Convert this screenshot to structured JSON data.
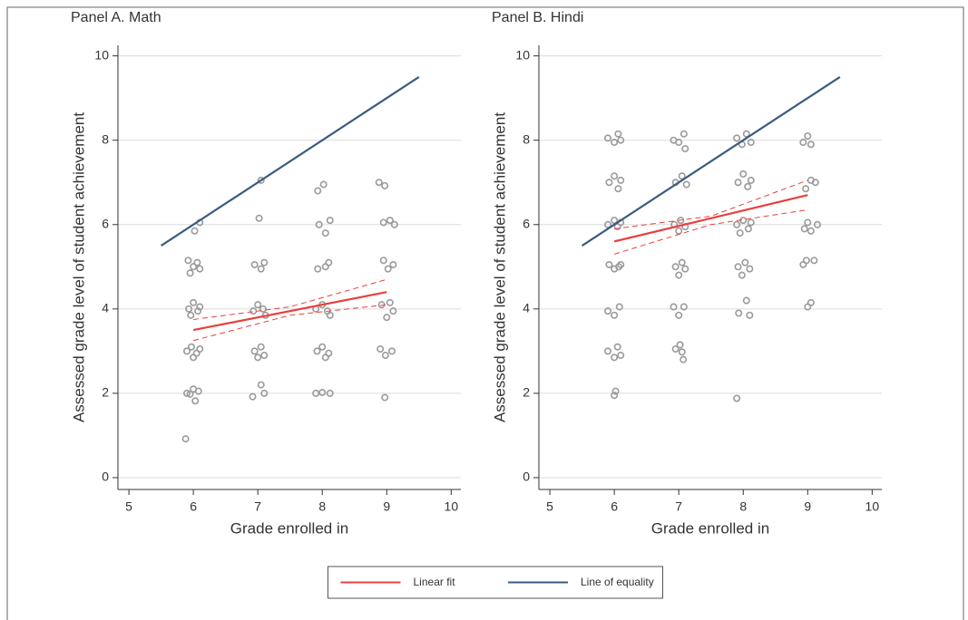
{
  "chart_data": [
    {
      "type": "scatter",
      "title": "Panel A. Math",
      "xlabel": "Grade enrolled in",
      "ylabel": "Assessed grade level of student achievement",
      "xlim": [
        4.83,
        10.15
      ],
      "ylim": [
        -0.28,
        10.25
      ],
      "xticks": [
        5,
        6,
        7,
        8,
        9,
        10
      ],
      "yticks": [
        0,
        2,
        4,
        6,
        8,
        10
      ],
      "grid": true,
      "legend": "bottom",
      "series": [
        {
          "color": "#9a9a9a",
          "marker": "circle-open",
          "x": [
            5.88,
            5.9,
            6.0,
            6.08,
            6.03,
            5.95,
            5.9,
            5.97,
            6.05,
            6.1,
            6.0,
            5.93,
            6.0,
            6.07,
            6.1,
            5.96,
            5.92,
            6.0,
            6.06,
            6.1,
            5.95,
            6.02,
            6.1,
            6.92,
            7.05,
            7.1,
            6.95,
            7.05,
            7.1,
            7.0,
            6.93,
            7.0,
            7.08,
            7.12,
            6.95,
            7.05,
            7.1,
            7.02,
            7.05,
            7.9,
            8.0,
            8.12,
            7.92,
            8.0,
            8.1,
            8.05,
            7.9,
            8.0,
            8.08,
            8.12,
            7.93,
            8.05,
            8.1,
            7.95,
            8.05,
            8.12,
            8.02,
            7.93,
            8.97,
            8.9,
            8.98,
            9.08,
            8.92,
            9.0,
            9.05,
            9.1,
            8.95,
            9.02,
            9.1,
            8.95,
            9.05,
            9.12,
            8.88,
            8.97
          ],
          "values": [
            0.92,
            2.0,
            2.1,
            2.05,
            1.82,
            1.98,
            3.0,
            3.1,
            2.95,
            3.05,
            2.85,
            4.0,
            4.15,
            3.95,
            4.05,
            3.85,
            5.15,
            5.0,
            5.1,
            4.95,
            4.85,
            5.85,
            6.05,
            1.92,
            2.2,
            2.0,
            3.0,
            3.1,
            2.9,
            2.85,
            3.95,
            4.1,
            4.0,
            3.85,
            5.05,
            4.95,
            5.1,
            6.15,
            7.05,
            2.0,
            2.02,
            2.0,
            3.0,
            3.1,
            2.95,
            2.85,
            4.0,
            4.1,
            3.95,
            3.85,
            4.95,
            5.0,
            5.1,
            6.0,
            5.8,
            6.1,
            6.95,
            6.8,
            1.9,
            3.05,
            2.9,
            3.0,
            4.1,
            3.8,
            4.15,
            3.95,
            5.15,
            4.95,
            5.05,
            6.05,
            6.1,
            6.0,
            7.0,
            6.92
          ]
        },
        {
          "color": "#e8403f",
          "line": "dashed",
          "x": [
            6,
            7.5,
            9
          ],
          "values": [
            3.75,
            4.05,
            4.7
          ]
        },
        {
          "color": "#e8403f",
          "line": "dashed",
          "x": [
            6,
            7.5,
            9
          ],
          "values": [
            3.25,
            3.85,
            4.1
          ]
        },
        {
          "name": "Linear fit",
          "color": "#e8403f",
          "line": "solid",
          "x": [
            6,
            9
          ],
          "values": [
            3.5,
            4.4
          ]
        },
        {
          "name": "Line of equality",
          "color": "#3b5b80",
          "line": "solid",
          "x": [
            5.5,
            9.5
          ],
          "values": [
            5.5,
            9.5
          ]
        }
      ]
    },
    {
      "type": "scatter",
      "title": "Panel B. Hindi",
      "xlabel": "Grade enrolled in",
      "ylabel": "Assessed grade level of student achievement",
      "xlim": [
        4.83,
        10.15
      ],
      "ylim": [
        -0.28,
        10.25
      ],
      "xticks": [
        5,
        6,
        7,
        8,
        9,
        10
      ],
      "yticks": [
        0,
        2,
        4,
        6,
        8,
        10
      ],
      "grid": true,
      "series": [
        {
          "color": "#9a9a9a",
          "marker": "circle-open",
          "x": [
            6.0,
            6.02,
            5.9,
            6.0,
            6.05,
            6.1,
            5.9,
            6.0,
            6.08,
            5.92,
            6.0,
            6.07,
            6.1,
            5.9,
            6.0,
            6.05,
            6.1,
            5.92,
            6.0,
            6.06,
            6.1,
            5.9,
            6.0,
            6.06,
            6.1,
            6.95,
            7.02,
            7.07,
            7.05,
            6.92,
            7.0,
            7.08,
            6.95,
            7.05,
            7.1,
            7.0,
            6.93,
            7.03,
            7.1,
            7.0,
            6.95,
            7.05,
            7.12,
            6.92,
            7.0,
            7.08,
            7.1,
            7.9,
            7.93,
            8.05,
            8.1,
            7.92,
            8.03,
            8.1,
            7.98,
            7.9,
            8.0,
            8.08,
            8.12,
            7.95,
            7.92,
            8.0,
            8.07,
            8.12,
            7.9,
            7.98,
            8.05,
            8.12,
            9.0,
            9.05,
            8.93,
            8.98,
            9.1,
            8.95,
            9.0,
            9.05,
            9.15,
            8.97,
            9.05,
            9.12,
            8.93,
            9.0,
            9.05
          ],
          "values": [
            1.95,
            2.05,
            3.0,
            2.85,
            3.1,
            2.9,
            3.95,
            3.85,
            4.05,
            5.05,
            4.95,
            5.0,
            5.05,
            6.0,
            6.1,
            5.95,
            6.05,
            7.0,
            7.15,
            6.85,
            7.05,
            8.05,
            7.95,
            8.15,
            8.0,
            3.05,
            3.15,
            2.8,
            2.98,
            4.05,
            3.85,
            4.05,
            5.0,
            5.1,
            4.95,
            4.8,
            6.0,
            6.1,
            5.95,
            5.85,
            7.0,
            7.15,
            6.95,
            8.0,
            7.95,
            8.15,
            7.8,
            1.88,
            3.9,
            4.2,
            3.85,
            5.0,
            5.1,
            4.95,
            4.8,
            6.0,
            6.1,
            5.9,
            6.05,
            5.8,
            7.0,
            7.2,
            6.9,
            7.05,
            8.05,
            7.9,
            8.15,
            7.95,
            4.05,
            4.15,
            5.05,
            5.15,
            5.15,
            5.9,
            6.05,
            5.85,
            6.0,
            6.85,
            7.05,
            7.0,
            7.95,
            8.1,
            7.9
          ]
        },
        {
          "color": "#e8403f",
          "line": "dashed",
          "x": [
            6,
            7.5,
            9
          ],
          "values": [
            5.9,
            6.2,
            7.05
          ]
        },
        {
          "color": "#e8403f",
          "line": "dashed",
          "x": [
            6,
            7.5,
            9
          ],
          "values": [
            5.3,
            6.0,
            6.35
          ]
        },
        {
          "color": "#e8403f",
          "line": "solid",
          "x": [
            6,
            9
          ],
          "values": [
            5.6,
            6.7
          ]
        },
        {
          "color": "#3b5b80",
          "line": "solid",
          "x": [
            5.5,
            9.5
          ],
          "values": [
            5.5,
            9.5
          ]
        }
      ]
    }
  ]
}
